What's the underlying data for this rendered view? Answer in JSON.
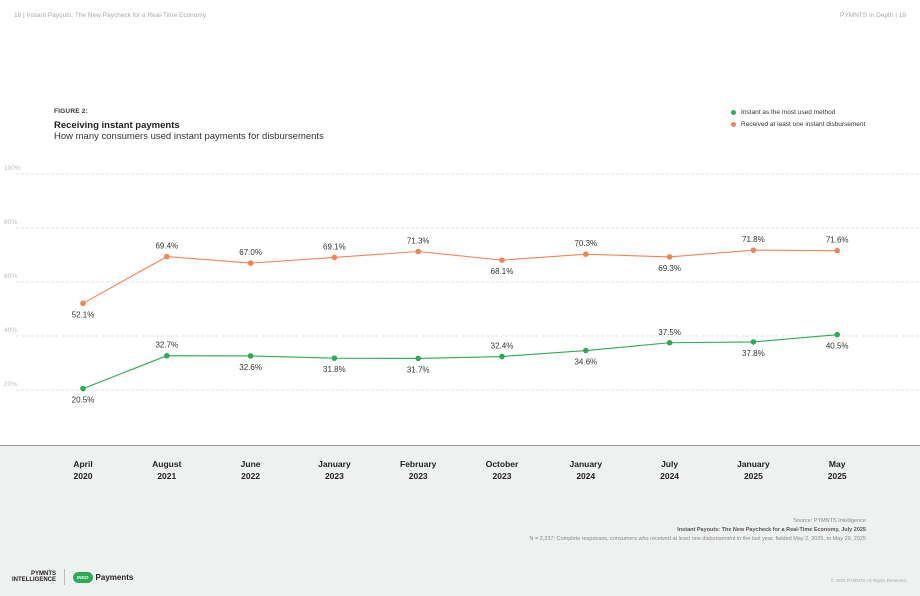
{
  "header": {
    "left": "18  |   Instant Payouts: The New Paycheck for a Real-Time Economy",
    "right": "PYMNTS In Depth   |   19"
  },
  "figure": {
    "label": "FIGURE 2:",
    "title": "Receiving instant payments",
    "subtitle": "How many consumers used instant payments for disbursements"
  },
  "colors": {
    "green": "#2bab55",
    "orange": "#ef8455",
    "grid": "#d9d9d9",
    "axis_text": "#bdbdbd"
  },
  "chart_data": {
    "type": "line",
    "categories": [
      [
        "April",
        "2020"
      ],
      [
        "August",
        "2021"
      ],
      [
        "June",
        "2022"
      ],
      [
        "January",
        "2023"
      ],
      [
        "February",
        "2023"
      ],
      [
        "October",
        "2023"
      ],
      [
        "January",
        "2024"
      ],
      [
        "July",
        "2024"
      ],
      [
        "January",
        "2025"
      ],
      [
        "May",
        "2025"
      ]
    ],
    "series": [
      {
        "name": "Instant as the most used method",
        "color": "#2bab55",
        "values": [
          20.5,
          32.7,
          32.6,
          31.8,
          31.7,
          32.4,
          34.6,
          37.5,
          37.8,
          40.5
        ],
        "labels": [
          "20.5%",
          "32.7%",
          "32.6%",
          "31.8%",
          "31.7%",
          "32.4%",
          "34.6%",
          "37.5%",
          "37.8%",
          "40.5%"
        ],
        "label_pos": [
          "below",
          "above",
          "below",
          "below",
          "below",
          "above",
          "below",
          "above",
          "below",
          "below"
        ]
      },
      {
        "name": "Received at least one instant disbursement",
        "color": "#ef8455",
        "values": [
          52.1,
          69.4,
          67.0,
          69.1,
          71.3,
          68.1,
          70.3,
          69.3,
          71.8,
          71.6
        ],
        "labels": [
          "52.1%",
          "69.4%",
          "67.0%",
          "69.1%",
          "71.3%",
          "68.1%",
          "70.3%",
          "69.3%",
          "71.8%",
          "71.6%"
        ],
        "label_pos": [
          "below",
          "above",
          "above",
          "above",
          "above",
          "below",
          "above",
          "below",
          "above",
          "above"
        ]
      }
    ],
    "y_ticks": [
      "20%",
      "40%",
      "60%",
      "80%",
      "100%"
    ],
    "y_tick_values": [
      20,
      40,
      60,
      80,
      100
    ],
    "ylim": [
      0,
      100
    ],
    "grid": true,
    "legend_position": "top-right"
  },
  "source": {
    "line1": "Source: PYMNTS Intelligence",
    "line2": "Instant Payouts: The New Paycheck for a Real-Time Economy, July 2025",
    "line3": "N = 2,237: Complete responses, consumers who received at least one disbursement in the last year, fielded May 2, 2025, to May 29, 2025"
  },
  "branding": {
    "pymnts_line1": "PYMNTS",
    "pymnts_line2": "INTELLIGENCE",
    "ingo_badge": "INGO",
    "payments": "Payments",
    "copyright": "© 2025 PYMNTS All Rights Reserved"
  }
}
